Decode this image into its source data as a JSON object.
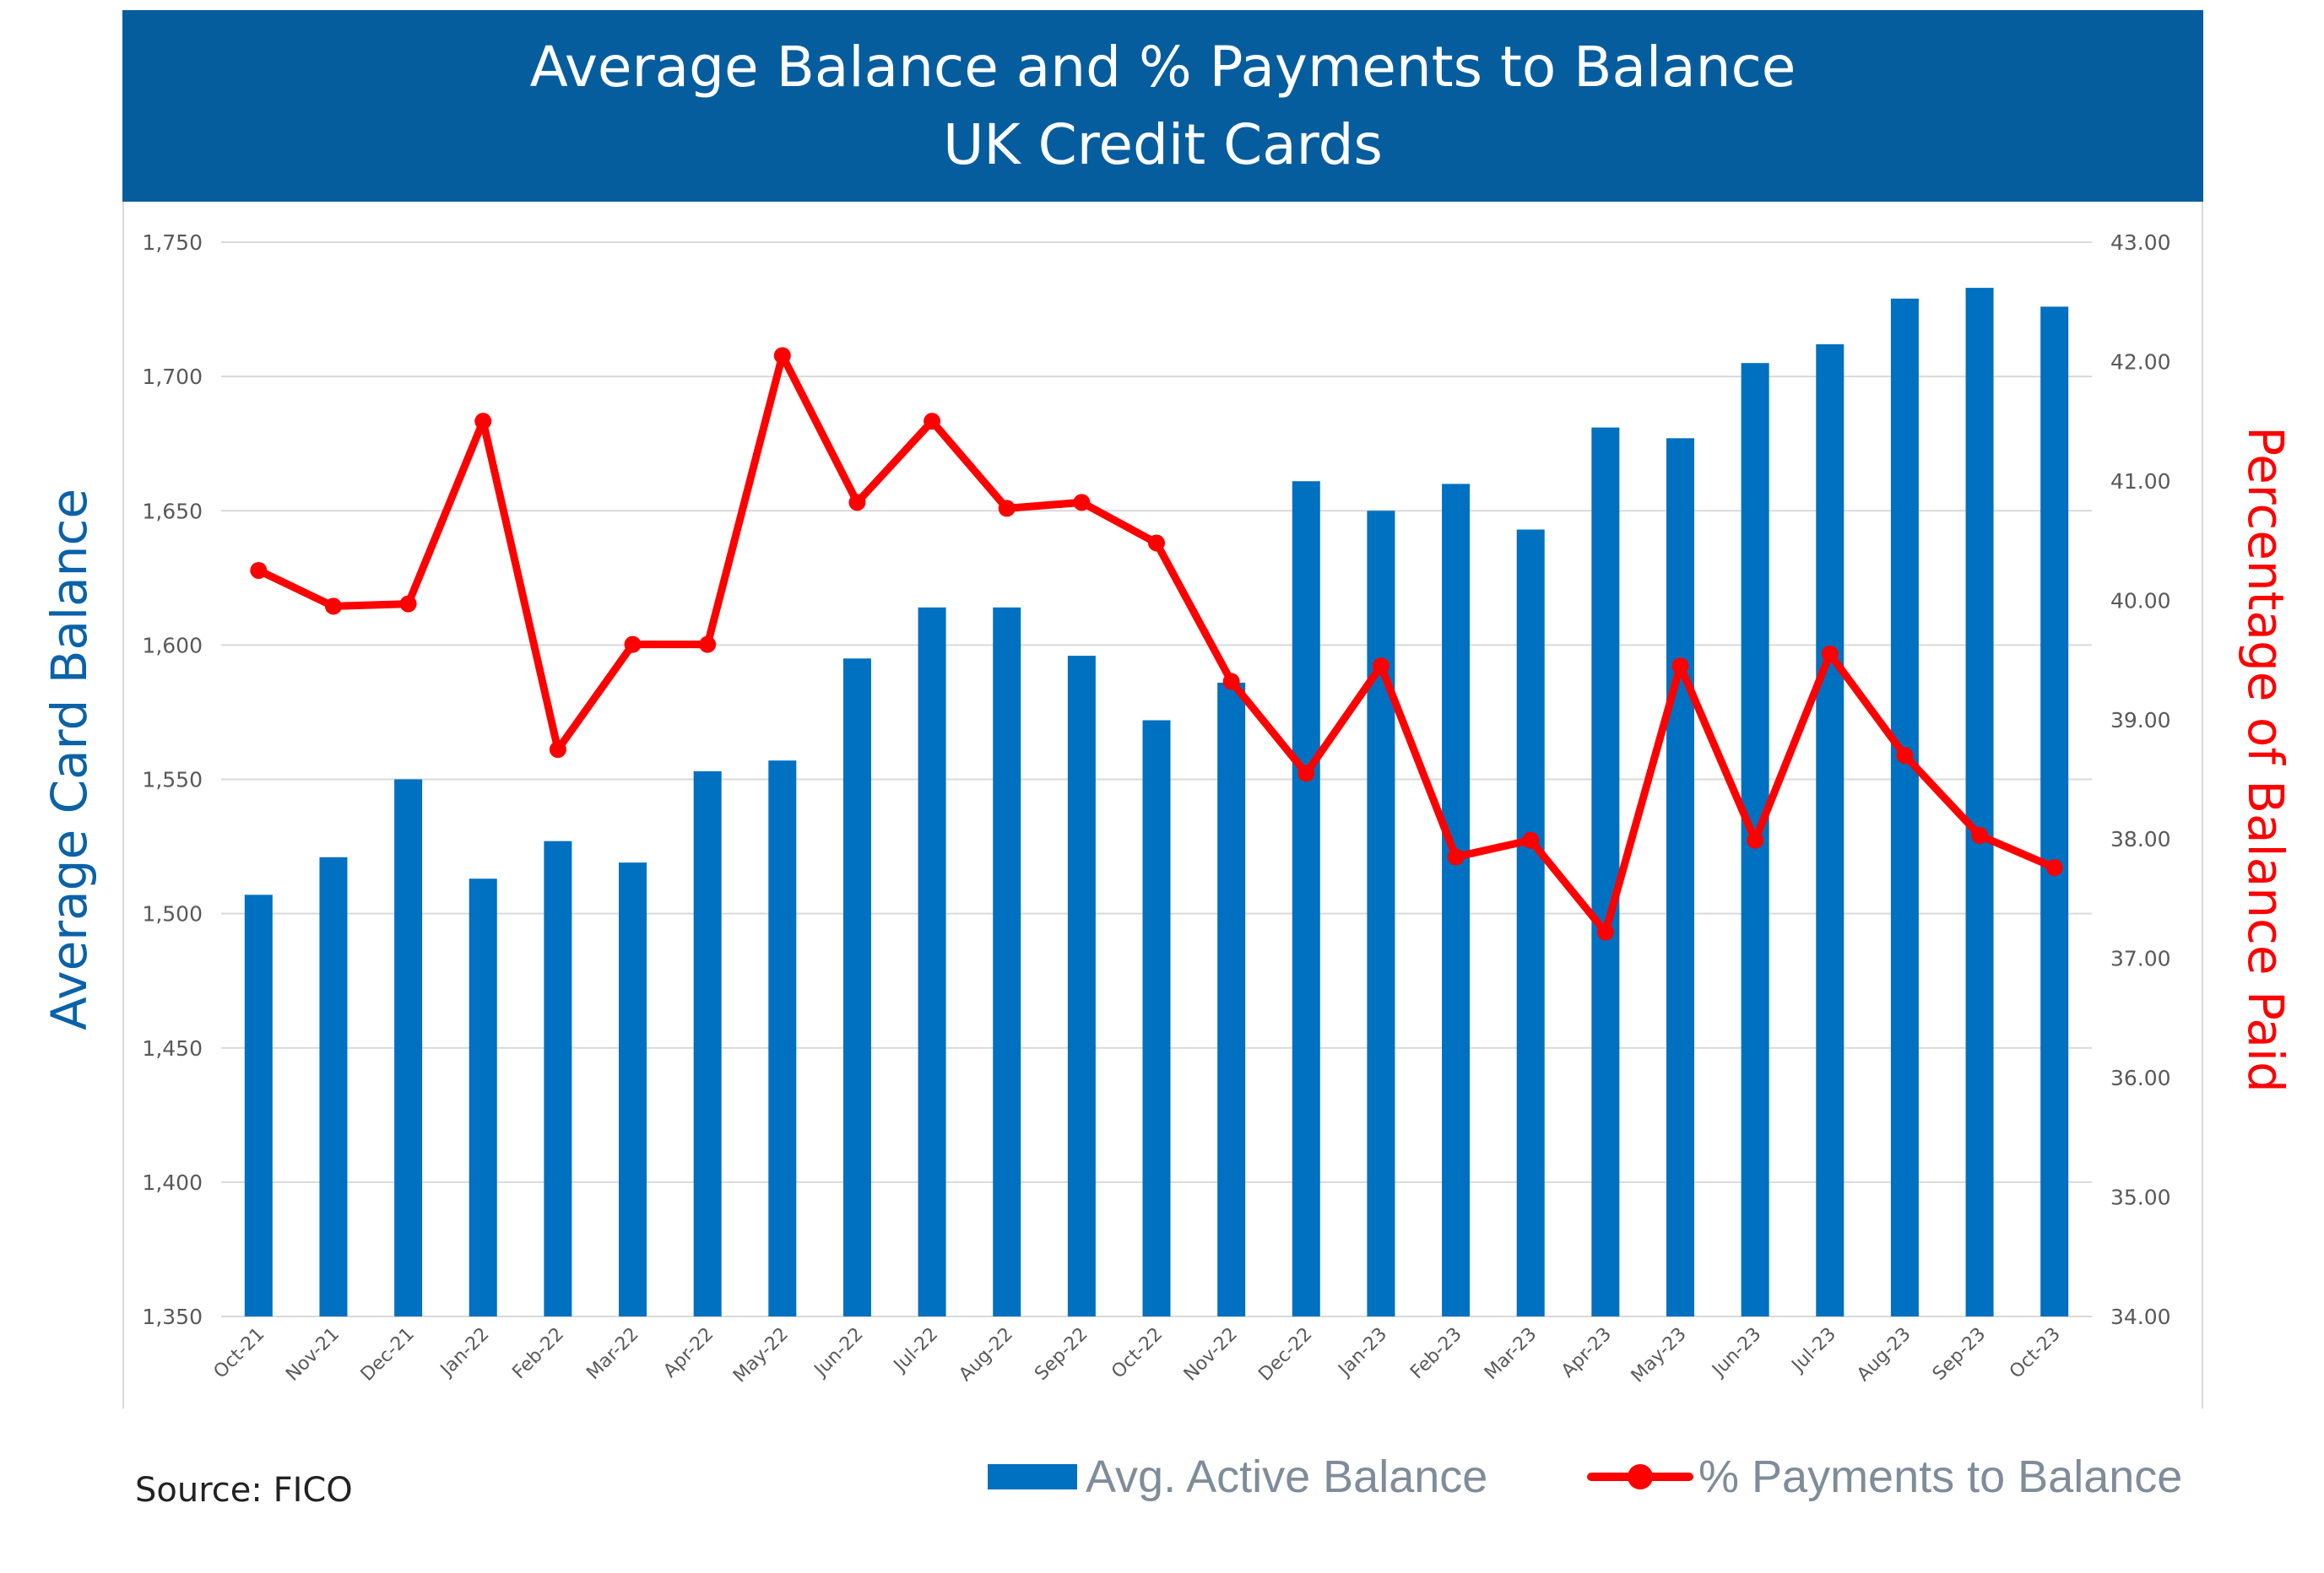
{
  "header": {
    "title_line1": "Average Balance and % Payments to Balance",
    "title_line2": "UK Credit Cards"
  },
  "source": "Source: FICO",
  "legend": {
    "bar_label": "Avg. Active Balance",
    "line_label": "% Payments to Balance"
  },
  "colors": {
    "header_bg": "#065d9e",
    "bar": "#0070c0",
    "line": "#ff0000",
    "left_axis_title": "#0a62a8",
    "right_axis_title": "#ff0000",
    "grid": "#d9d9d9"
  },
  "chart_data": {
    "type": "bar",
    "categories": [
      "Oct-21",
      "Nov-21",
      "Dec-21",
      "Jan-22",
      "Feb-22",
      "Mar-22",
      "Apr-22",
      "May-22",
      "Jun-22",
      "Jul-22",
      "Aug-22",
      "Sep-22",
      "Oct-22",
      "Nov-22",
      "Dec-22",
      "Jan-23",
      "Feb-23",
      "Mar-23",
      "Apr-23",
      "May-23",
      "Jun-23",
      "Jul-23",
      "Aug-23",
      "Sep-23",
      "Oct-23"
    ],
    "series": [
      {
        "name": "Avg. Active Balance",
        "type": "bar",
        "axis": "left",
        "values": [
          1507,
          1521,
          1550,
          1513,
          1527,
          1519,
          1553,
          1557,
          1595,
          1614,
          1614,
          1596,
          1572,
          1586,
          1661,
          1650,
          1660,
          1643,
          1681,
          1677,
          1705,
          1712,
          1729,
          1733,
          1726
        ]
      },
      {
        "name": "% Payments to Balance",
        "type": "line",
        "axis": "right",
        "values": [
          40.25,
          39.95,
          39.97,
          41.5,
          38.75,
          39.63,
          39.63,
          42.05,
          40.82,
          41.5,
          40.77,
          40.82,
          40.48,
          39.32,
          38.55,
          39.45,
          37.85,
          37.99,
          37.22,
          39.45,
          37.99,
          39.55,
          38.7,
          38.03,
          37.76
        ]
      }
    ],
    "ylabel": "Average Card Balance",
    "y2label": "Percentage of Balance Paid",
    "ylim": [
      1350,
      1750
    ],
    "y2lim": [
      34,
      43
    ],
    "yticks": [
      "1,350",
      "1,400",
      "1,450",
      "1,500",
      "1,550",
      "1,600",
      "1,650",
      "1,700",
      "1,750"
    ],
    "y2ticks": [
      "34.00",
      "35.00",
      "36.00",
      "37.00",
      "38.00",
      "39.00",
      "40.00",
      "41.00",
      "42.00",
      "43.00"
    ],
    "grid": true,
    "legend_position": "bottom-right"
  }
}
